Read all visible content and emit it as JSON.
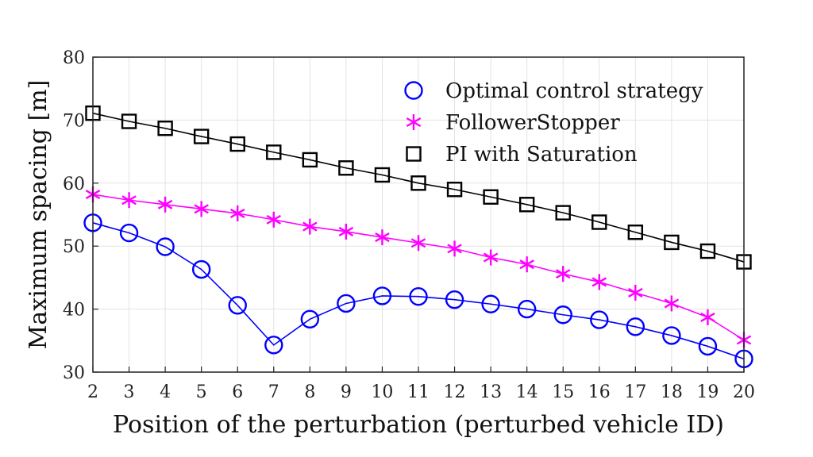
{
  "chart_data": {
    "type": "line",
    "xlabel": "Position of the perturbation (perturbed vehicle ID)",
    "ylabel": "Maximum spacing [m]",
    "xlim": [
      2,
      20
    ],
    "ylim": [
      30,
      80
    ],
    "xticks": [
      2,
      3,
      4,
      5,
      6,
      7,
      8,
      9,
      10,
      11,
      12,
      13,
      14,
      15,
      16,
      17,
      18,
      19,
      20
    ],
    "yticks": [
      30,
      40,
      50,
      60,
      70,
      80
    ],
    "grid": true,
    "legend_position": "top-right",
    "x": [
      2,
      3,
      4,
      5,
      6,
      7,
      8,
      9,
      10,
      11,
      12,
      13,
      14,
      15,
      16,
      17,
      18,
      19,
      20
    ],
    "series": [
      {
        "name": "Optimal control strategy",
        "color": "#0000ff",
        "marker": "circle",
        "values": [
          53.7,
          52.1,
          49.9,
          46.3,
          40.6,
          34.3,
          38.4,
          40.9,
          42.1,
          42.0,
          41.5,
          40.8,
          40.0,
          39.1,
          38.3,
          37.2,
          35.8,
          34.1,
          32.1
        ]
      },
      {
        "name": "FollowerStopper",
        "color": "#ff00ff",
        "marker": "asterisk",
        "values": [
          58.2,
          57.3,
          56.6,
          55.9,
          55.2,
          54.2,
          53.1,
          52.3,
          51.4,
          50.5,
          49.6,
          48.2,
          47.1,
          45.6,
          44.3,
          42.6,
          40.9,
          38.7,
          35.1
        ]
      },
      {
        "name": "PI with Saturation",
        "color": "#000000",
        "marker": "square",
        "values": [
          71.1,
          69.8,
          68.7,
          67.4,
          66.2,
          64.9,
          63.7,
          62.4,
          61.3,
          60.0,
          59.0,
          57.8,
          56.6,
          55.3,
          53.8,
          52.2,
          50.6,
          49.2,
          47.5
        ]
      }
    ]
  }
}
